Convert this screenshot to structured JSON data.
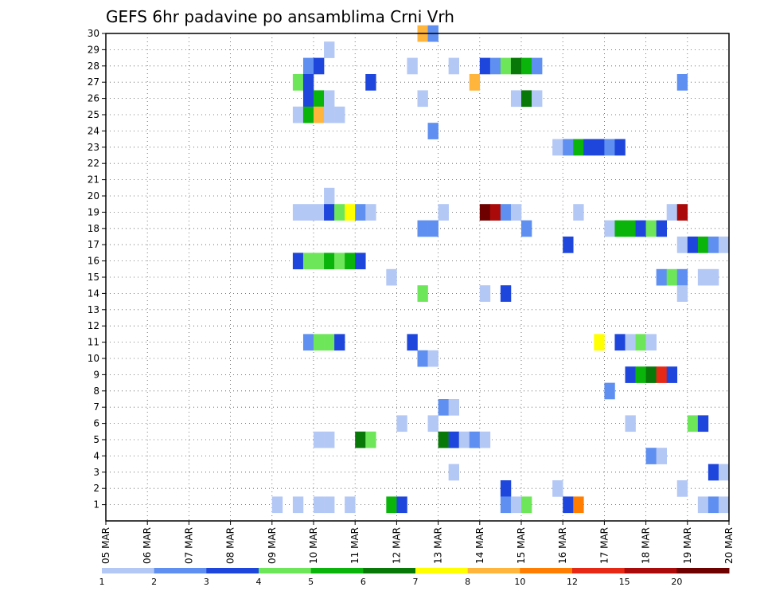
{
  "chart_data": {
    "type": "heatmap",
    "title": "GEFS 6hr padavine po ansamblima Crni Vrh",
    "xlabel": "",
    "ylabel": "",
    "x_ticks": [
      "05 MAR",
      "06 MAR",
      "07 MAR",
      "08 MAR",
      "09 MAR",
      "10 MAR",
      "11 MAR",
      "12 MAR",
      "13 MAR",
      "14 MAR",
      "15 MAR",
      "16 MAR",
      "17 MAR",
      "18 MAR",
      "19 MAR",
      "20 MAR"
    ],
    "x_range_days": [
      5,
      20
    ],
    "x_step_hours": 6,
    "y_ticks": [
      "1",
      "2",
      "3",
      "4",
      "5",
      "6",
      "7",
      "8",
      "9",
      "10",
      "11",
      "12",
      "13",
      "14",
      "15",
      "16",
      "17",
      "18",
      "19",
      "20",
      "21",
      "22",
      "23",
      "24",
      "25",
      "26",
      "27",
      "28",
      "29",
      "30"
    ],
    "y_range": [
      0,
      30
    ],
    "grid": true,
    "legend": {
      "placement": "bottom",
      "thresholds": [
        "1",
        "2",
        "3",
        "4",
        "5",
        "6",
        "7",
        "8",
        "10",
        "12",
        "15",
        "20"
      ],
      "colors": [
        "#b4c8f5",
        "#5f8ff0",
        "#1e46dc",
        "#6ee65a",
        "#0ab40a",
        "#087808",
        "#ffff00",
        "#ffb43c",
        "#ff7d00",
        "#e62814",
        "#aa0a0a",
        "#6e0000"
      ]
    },
    "cells": [
      {
        "member": 30,
        "day": 12.5,
        "class": 7
      },
      {
        "member": 30,
        "day": 12.75,
        "class": 1
      },
      {
        "member": 29,
        "day": 10.25,
        "class": 0
      },
      {
        "member": 28,
        "day": 9.75,
        "class": 1
      },
      {
        "member": 28,
        "day": 10.0,
        "class": 2
      },
      {
        "member": 28,
        "day": 12.25,
        "class": 0
      },
      {
        "member": 28,
        "day": 13.25,
        "class": 0
      },
      {
        "member": 28,
        "day": 14.0,
        "class": 2
      },
      {
        "member": 28,
        "day": 14.25,
        "class": 1
      },
      {
        "member": 28,
        "day": 14.5,
        "class": 3
      },
      {
        "member": 28,
        "day": 14.75,
        "class": 5
      },
      {
        "member": 28,
        "day": 15.0,
        "class": 4
      },
      {
        "member": 28,
        "day": 15.25,
        "class": 1
      },
      {
        "member": 27,
        "day": 9.5,
        "class": 3
      },
      {
        "member": 27,
        "day": 9.75,
        "class": 2
      },
      {
        "member": 27,
        "day": 11.25,
        "class": 2
      },
      {
        "member": 27,
        "day": 13.75,
        "class": 7
      },
      {
        "member": 27,
        "day": 18.75,
        "class": 1
      },
      {
        "member": 26,
        "day": 9.75,
        "class": 2
      },
      {
        "member": 26,
        "day": 10.0,
        "class": 4
      },
      {
        "member": 26,
        "day": 10.25,
        "class": 0
      },
      {
        "member": 26,
        "day": 12.5,
        "class": 0
      },
      {
        "member": 26,
        "day": 14.75,
        "class": 0
      },
      {
        "member": 26,
        "day": 15.0,
        "class": 5
      },
      {
        "member": 26,
        "day": 15.25,
        "class": 0
      },
      {
        "member": 25,
        "day": 9.5,
        "class": 0
      },
      {
        "member": 25,
        "day": 9.75,
        "class": 4
      },
      {
        "member": 25,
        "day": 10.0,
        "class": 7
      },
      {
        "member": 25,
        "day": 10.25,
        "class": 0
      },
      {
        "member": 25,
        "day": 10.5,
        "class": 0
      },
      {
        "member": 24,
        "day": 12.75,
        "class": 1
      },
      {
        "member": 23,
        "day": 15.75,
        "class": 0
      },
      {
        "member": 23,
        "day": 16.0,
        "class": 1
      },
      {
        "member": 23,
        "day": 16.25,
        "class": 4
      },
      {
        "member": 23,
        "day": 16.5,
        "class": 2
      },
      {
        "member": 23,
        "day": 16.75,
        "class": 2
      },
      {
        "member": 23,
        "day": 17.0,
        "class": 1
      },
      {
        "member": 23,
        "day": 17.25,
        "class": 2
      },
      {
        "member": 20,
        "day": 10.25,
        "class": 0
      },
      {
        "member": 19,
        "day": 9.5,
        "class": 0
      },
      {
        "member": 19,
        "day": 9.75,
        "class": 0
      },
      {
        "member": 19,
        "day": 10.0,
        "class": 0
      },
      {
        "member": 19,
        "day": 10.25,
        "class": 2
      },
      {
        "member": 19,
        "day": 10.5,
        "class": 3
      },
      {
        "member": 19,
        "day": 10.75,
        "class": 6
      },
      {
        "member": 19,
        "day": 11.0,
        "class": 1
      },
      {
        "member": 19,
        "day": 11.25,
        "class": 0
      },
      {
        "member": 19,
        "day": 13.0,
        "class": 0
      },
      {
        "member": 19,
        "day": 14.0,
        "class": 11
      },
      {
        "member": 19,
        "day": 14.25,
        "class": 10
      },
      {
        "member": 19,
        "day": 14.5,
        "class": 1
      },
      {
        "member": 19,
        "day": 14.75,
        "class": 0
      },
      {
        "member": 19,
        "day": 16.25,
        "class": 0
      },
      {
        "member": 19,
        "day": 18.5,
        "class": 0
      },
      {
        "member": 19,
        "day": 18.75,
        "class": 10
      },
      {
        "member": 18,
        "day": 12.5,
        "class": 1
      },
      {
        "member": 18,
        "day": 12.75,
        "class": 1
      },
      {
        "member": 18,
        "day": 15.0,
        "class": 1
      },
      {
        "member": 18,
        "day": 17.0,
        "class": 0
      },
      {
        "member": 18,
        "day": 17.25,
        "class": 4
      },
      {
        "member": 18,
        "day": 17.5,
        "class": 4
      },
      {
        "member": 18,
        "day": 17.75,
        "class": 2
      },
      {
        "member": 18,
        "day": 18.0,
        "class": 3
      },
      {
        "member": 18,
        "day": 18.25,
        "class": 2
      },
      {
        "member": 17,
        "day": 16.0,
        "class": 2
      },
      {
        "member": 17,
        "day": 18.75,
        "class": 0
      },
      {
        "member": 17,
        "day": 19.0,
        "class": 2
      },
      {
        "member": 17,
        "day": 19.25,
        "class": 4
      },
      {
        "member": 17,
        "day": 19.5,
        "class": 1
      },
      {
        "member": 17,
        "day": 19.75,
        "class": 0
      },
      {
        "member": 16,
        "day": 9.5,
        "class": 2
      },
      {
        "member": 16,
        "day": 9.75,
        "class": 3
      },
      {
        "member": 16,
        "day": 10.0,
        "class": 3
      },
      {
        "member": 16,
        "day": 10.25,
        "class": 4
      },
      {
        "member": 16,
        "day": 10.5,
        "class": 3
      },
      {
        "member": 16,
        "day": 10.75,
        "class": 4
      },
      {
        "member": 16,
        "day": 11.0,
        "class": 2
      },
      {
        "member": 15,
        "day": 11.75,
        "class": 0
      },
      {
        "member": 15,
        "day": 18.25,
        "class": 1
      },
      {
        "member": 15,
        "day": 18.5,
        "class": 3
      },
      {
        "member": 15,
        "day": 18.75,
        "class": 1
      },
      {
        "member": 15,
        "day": 19.25,
        "class": 0
      },
      {
        "member": 15,
        "day": 19.5,
        "class": 0
      },
      {
        "member": 14,
        "day": 12.5,
        "class": 3
      },
      {
        "member": 14,
        "day": 14.0,
        "class": 0
      },
      {
        "member": 14,
        "day": 14.5,
        "class": 2
      },
      {
        "member": 14,
        "day": 18.75,
        "class": 0
      },
      {
        "member": 11,
        "day": 9.75,
        "class": 1
      },
      {
        "member": 11,
        "day": 10.0,
        "class": 3
      },
      {
        "member": 11,
        "day": 10.25,
        "class": 3
      },
      {
        "member": 11,
        "day": 10.5,
        "class": 2
      },
      {
        "member": 11,
        "day": 12.25,
        "class": 2
      },
      {
        "member": 11,
        "day": 16.75,
        "class": 6
      },
      {
        "member": 11,
        "day": 17.25,
        "class": 2
      },
      {
        "member": 11,
        "day": 17.5,
        "class": 0
      },
      {
        "member": 11,
        "day": 17.75,
        "class": 3
      },
      {
        "member": 11,
        "day": 18.0,
        "class": 0
      },
      {
        "member": 10,
        "day": 12.5,
        "class": 1
      },
      {
        "member": 10,
        "day": 12.75,
        "class": 0
      },
      {
        "member": 9,
        "day": 17.5,
        "class": 2
      },
      {
        "member": 9,
        "day": 17.75,
        "class": 4
      },
      {
        "member": 9,
        "day": 18.0,
        "class": 5
      },
      {
        "member": 9,
        "day": 18.25,
        "class": 9
      },
      {
        "member": 9,
        "day": 18.5,
        "class": 2
      },
      {
        "member": 8,
        "day": 17.0,
        "class": 1
      },
      {
        "member": 7,
        "day": 13.0,
        "class": 1
      },
      {
        "member": 7,
        "day": 13.25,
        "class": 0
      },
      {
        "member": 6,
        "day": 12.0,
        "class": 0
      },
      {
        "member": 6,
        "day": 12.75,
        "class": 0
      },
      {
        "member": 6,
        "day": 17.5,
        "class": 0
      },
      {
        "member": 6,
        "day": 19.0,
        "class": 3
      },
      {
        "member": 6,
        "day": 19.25,
        "class": 2
      },
      {
        "member": 5,
        "day": 10.0,
        "class": 0
      },
      {
        "member": 5,
        "day": 10.25,
        "class": 0
      },
      {
        "member": 5,
        "day": 11.0,
        "class": 5
      },
      {
        "member": 5,
        "day": 11.25,
        "class": 3
      },
      {
        "member": 5,
        "day": 13.0,
        "class": 5
      },
      {
        "member": 5,
        "day": 13.25,
        "class": 2
      },
      {
        "member": 5,
        "day": 13.5,
        "class": 0
      },
      {
        "member": 5,
        "day": 13.75,
        "class": 1
      },
      {
        "member": 5,
        "day": 14.0,
        "class": 0
      },
      {
        "member": 4,
        "day": 18.0,
        "class": 1
      },
      {
        "member": 4,
        "day": 18.25,
        "class": 0
      },
      {
        "member": 3,
        "day": 13.25,
        "class": 0
      },
      {
        "member": 3,
        "day": 19.5,
        "class": 2
      },
      {
        "member": 3,
        "day": 19.75,
        "class": 0
      },
      {
        "member": 2,
        "day": 14.5,
        "class": 2
      },
      {
        "member": 2,
        "day": 15.75,
        "class": 0
      },
      {
        "member": 2,
        "day": 18.75,
        "class": 0
      },
      {
        "member": 1,
        "day": 9.0,
        "class": 0
      },
      {
        "member": 1,
        "day": 9.5,
        "class": 0
      },
      {
        "member": 1,
        "day": 10.0,
        "class": 0
      },
      {
        "member": 1,
        "day": 10.25,
        "class": 0
      },
      {
        "member": 1,
        "day": 10.75,
        "class": 0
      },
      {
        "member": 1,
        "day": 11.75,
        "class": 4
      },
      {
        "member": 1,
        "day": 12.0,
        "class": 2
      },
      {
        "member": 1,
        "day": 14.5,
        "class": 1
      },
      {
        "member": 1,
        "day": 14.75,
        "class": 0
      },
      {
        "member": 1,
        "day": 15.0,
        "class": 3
      },
      {
        "member": 1,
        "day": 16.0,
        "class": 2
      },
      {
        "member": 1,
        "day": 16.25,
        "class": 8
      },
      {
        "member": 1,
        "day": 19.25,
        "class": 0
      },
      {
        "member": 1,
        "day": 19.5,
        "class": 1
      },
      {
        "member": 1,
        "day": 19.75,
        "class": 0
      }
    ]
  }
}
